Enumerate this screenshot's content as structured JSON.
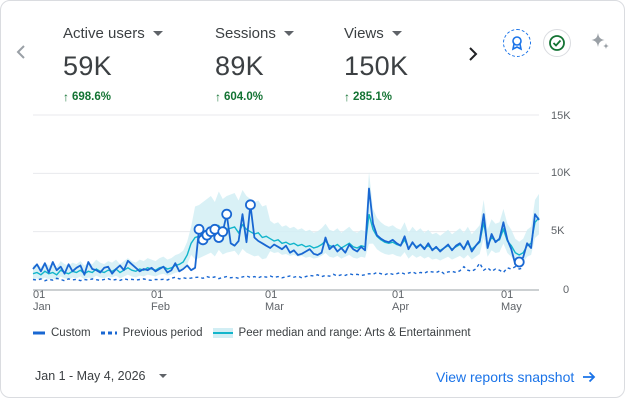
{
  "metrics": [
    {
      "label": "Active users",
      "value": "59K",
      "change": "698.6%"
    },
    {
      "label": "Sessions",
      "value": "89K",
      "change": "604.0%"
    },
    {
      "label": "Views",
      "value": "150K",
      "change": "285.1%"
    }
  ],
  "icons": {
    "left_nav": "chevron-left-icon",
    "right_nav": "chevron-right-icon",
    "badge": "award-badge-icon",
    "check": "check-circle-icon",
    "sparkle": "sparkle-icon"
  },
  "colors": {
    "custom": "#1967d2",
    "previous": "#1967d2",
    "peer_line": "#12b5cb",
    "peer_band": "#d2eef4",
    "positive": "#137333",
    "link": "#1a73e8"
  },
  "chart_data": {
    "type": "line",
    "y_ticks": [
      "15K",
      "10K",
      "5K",
      "0"
    ],
    "x_ticks": [
      {
        "day": "01",
        "month": "Jan"
      },
      {
        "day": "01",
        "month": "Feb"
      },
      {
        "day": "01",
        "month": "Mar"
      },
      {
        "day": "01",
        "month": "Apr"
      },
      {
        "day": "01",
        "month": "May"
      }
    ],
    "ylim": [
      0,
      15000
    ],
    "x_range_days": [
      0,
      124
    ],
    "legend_placement": "bottom",
    "series": [
      {
        "name": "Custom",
        "values": [
          1800,
          2200,
          1600,
          2300,
          1500,
          2400,
          1700,
          2000,
          1400,
          2200,
          1600,
          1900,
          2100,
          1300,
          2400,
          1800,
          1700,
          1500,
          1900,
          2000,
          1400,
          1800,
          2100,
          1700,
          2500,
          2200,
          1900,
          1600,
          1800,
          1700,
          1900,
          1600,
          1800,
          2000,
          1500,
          1700,
          2300,
          1600,
          1800,
          2100,
          1700,
          1900,
          5200,
          4300,
          4700,
          5000,
          5200,
          4500,
          5000,
          6500,
          4000,
          3800,
          4200,
          6500,
          4100,
          7300,
          4500,
          4200,
          4000,
          3800,
          3600,
          3900,
          3700,
          3500,
          3800,
          3200,
          3400,
          3000,
          3100,
          3300,
          3500,
          3100,
          3000,
          3200,
          4500,
          3500,
          3800,
          3300,
          3600,
          3200,
          3900,
          3500,
          3300,
          3700,
          3400,
          8700,
          5700,
          4700,
          4400,
          4200,
          4100,
          4300,
          4000,
          3800,
          4600,
          3500,
          4100,
          3600,
          3900,
          3500,
          4000,
          3400,
          3700,
          3300,
          3600,
          3900,
          3400,
          3800,
          4000,
          3500,
          4200,
          3300,
          3800,
          4200,
          6500,
          3600,
          4800,
          4100,
          4400,
          5800,
          4300,
          3500,
          2200,
          2400,
          2800,
          4000,
          3600,
          6500,
          6000
        ]
      },
      {
        "name": "Previous period",
        "values": [
          900,
          850,
          950,
          800,
          900,
          850,
          1000,
          900,
          800,
          950,
          870,
          920,
          800,
          900,
          850,
          950,
          880,
          820,
          900,
          970,
          840,
          900,
          820,
          960,
          880,
          920,
          850,
          900,
          950,
          870,
          830,
          910,
          880,
          920,
          860,
          1000,
          1100,
          950,
          1050,
          980,
          1020,
          1080,
          1100,
          1000,
          1150,
          1050,
          1120,
          980,
          1080,
          1150,
          1050,
          1100,
          1000,
          1120,
          1200,
          1080,
          1150,
          1050,
          1180,
          1100,
          1200,
          1080,
          1150,
          1050,
          1120,
          1200,
          1100,
          1180,
          1050,
          1150,
          1250,
          1200,
          1300,
          1150,
          1250,
          1180,
          1350,
          1200,
          1300,
          1250,
          1400,
          1300,
          1350,
          1250,
          1300,
          1400,
          1350,
          1500,
          1400,
          1300,
          1450,
          1350,
          1400,
          1500,
          1380,
          1450,
          1550,
          1400,
          1500,
          1450,
          1600,
          1550,
          1500,
          1650,
          1400,
          1550,
          1600,
          1500,
          1650,
          2000,
          1700,
          1600,
          1800,
          2300,
          1700,
          1900,
          1600,
          1800,
          1700,
          1500,
          1900,
          1800,
          2000,
          1800,
          1900
        ]
      },
      {
        "name": "Peer median and range: Arts & Entertainment",
        "values": [
          1400,
          1500,
          1300,
          1600,
          1400,
          1500,
          1300,
          1700,
          1500,
          1400,
          1600,
          1500,
          1700,
          1400,
          1600,
          1500,
          1800,
          1600,
          1500,
          1700,
          1600,
          1800,
          1500,
          1700,
          1900,
          1700,
          1600,
          1800,
          1700,
          1900,
          1800,
          1700,
          1900,
          2000,
          1800,
          1900,
          2100,
          2200,
          2400,
          3000,
          4000,
          4500,
          4600,
          4800,
          5000,
          5200,
          4800,
          5500,
          5000,
          5200,
          5300,
          5400,
          4900,
          5600,
          5200,
          5000,
          4800,
          4900,
          4500,
          4600,
          4400,
          4200,
          4300,
          4000,
          4100,
          3900,
          4000,
          3800,
          3900,
          3700,
          3800,
          3600,
          3700,
          3900,
          4200,
          3800,
          3700,
          3900,
          3600,
          3800,
          4000,
          3700,
          3600,
          3800,
          3700,
          6500,
          5200,
          4600,
          4300,
          4100,
          4000,
          4100,
          3900,
          3800,
          4300,
          3600,
          4000,
          3700,
          3900,
          3600,
          3800,
          3500,
          3600,
          3400,
          3600,
          3800,
          3500,
          3700,
          3900,
          3600,
          4000,
          3500,
          3800,
          4100,
          5800,
          3800,
          4500,
          4200,
          4300,
          5200,
          4200,
          3800,
          3200,
          3000,
          3200,
          3800,
          4000,
          5800,
          6200
        ]
      }
    ]
  },
  "legend": [
    {
      "label": "Custom",
      "style": "solid"
    },
    {
      "label": "Previous period",
      "style": "dashed"
    },
    {
      "label": "Peer median and range: Arts & Entertainment",
      "style": "band"
    }
  ],
  "date_range": "Jan 1 - May 4, 2026",
  "snapshot_link": "View reports snapshot"
}
